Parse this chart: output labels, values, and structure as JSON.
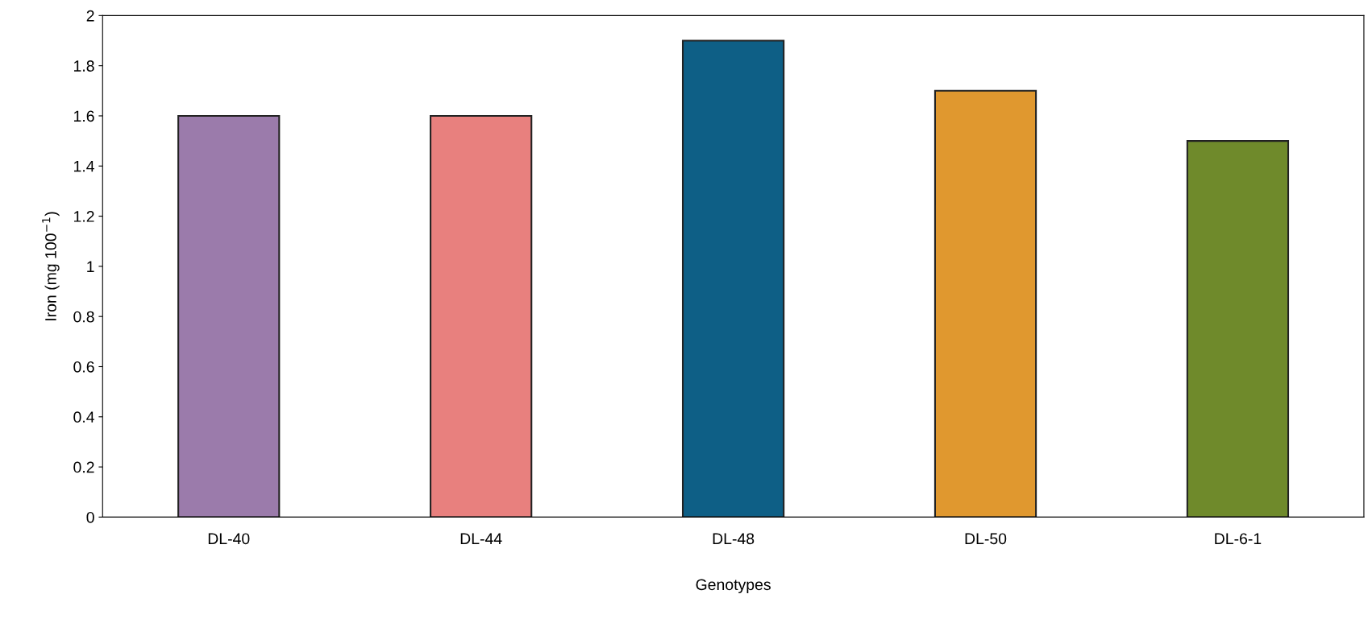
{
  "chart_data": {
    "type": "bar",
    "xlabel": "Genotypes",
    "ylabel": "Iron (mg 100$^{−1}$)",
    "categories": [
      "DL-40",
      "DL-44",
      "DL-48",
      "DL-50",
      "DL-6-1"
    ],
    "values": [
      1.6,
      1.6,
      1.9,
      1.7,
      1.5
    ],
    "colors": [
      "#9b7bab",
      "#e8807e",
      "#0e5f86",
      "#e0982f",
      "#6f8a2b"
    ],
    "ylim": [
      0,
      2
    ],
    "yticks": [
      0,
      {
        "value": 0.2,
        "label": "0.2"
      },
      {
        "value": 0.4,
        "label": "0.4"
      },
      {
        "value": 0.6,
        "label": "0.6"
      },
      {
        "value": 0.8,
        "label": "0.8"
      },
      1,
      {
        "value": 1.2,
        "label": "1.2"
      },
      {
        "value": 1.4,
        "label": "1.4"
      },
      {
        "value": 1.6,
        "label": "1.6"
      },
      {
        "value": 1.8,
        "label": "1.8"
      },
      2
    ],
    "grid": false,
    "legend": false
  }
}
